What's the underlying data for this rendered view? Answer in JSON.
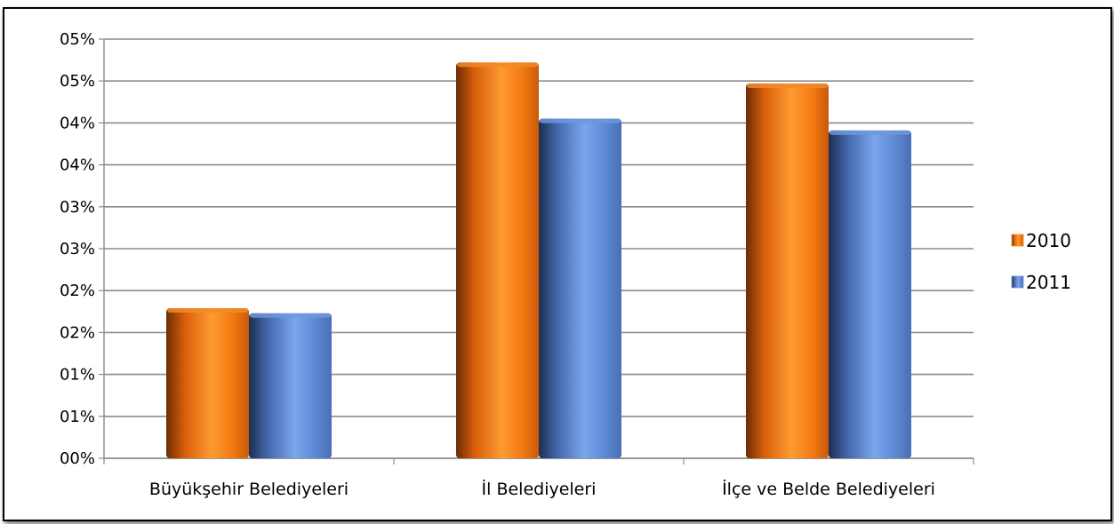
{
  "chart_data": {
    "type": "bar",
    "title": "",
    "xlabel": "",
    "ylabel": "",
    "categories": [
      "Büyükşehir Belediyeleri",
      "İl Belediyeleri",
      "İlçe ve Belde Belediyeleri"
    ],
    "series": [
      {
        "name": "2010",
        "values": [
          1.79,
          4.72,
          4.47
        ],
        "color": "#f07a10"
      },
      {
        "name": "2011",
        "values": [
          1.73,
          4.05,
          3.91
        ],
        "color": "#5b86cf"
      }
    ],
    "ylim": [
      0,
      5.0
    ],
    "yticks": [
      {
        "value": 0.0,
        "label": "00%"
      },
      {
        "value": 0.5,
        "label": "01%"
      },
      {
        "value": 1.0,
        "label": "01%"
      },
      {
        "value": 1.5,
        "label": "02%"
      },
      {
        "value": 2.0,
        "label": "02%"
      },
      {
        "value": 2.5,
        "label": "03%"
      },
      {
        "value": 3.0,
        "label": "03%"
      },
      {
        "value": 3.5,
        "label": "04%"
      },
      {
        "value": 4.0,
        "label": "04%"
      },
      {
        "value": 4.5,
        "label": "05%"
      },
      {
        "value": 5.0,
        "label": "05%"
      }
    ],
    "grid": true,
    "legend_position": "right"
  }
}
